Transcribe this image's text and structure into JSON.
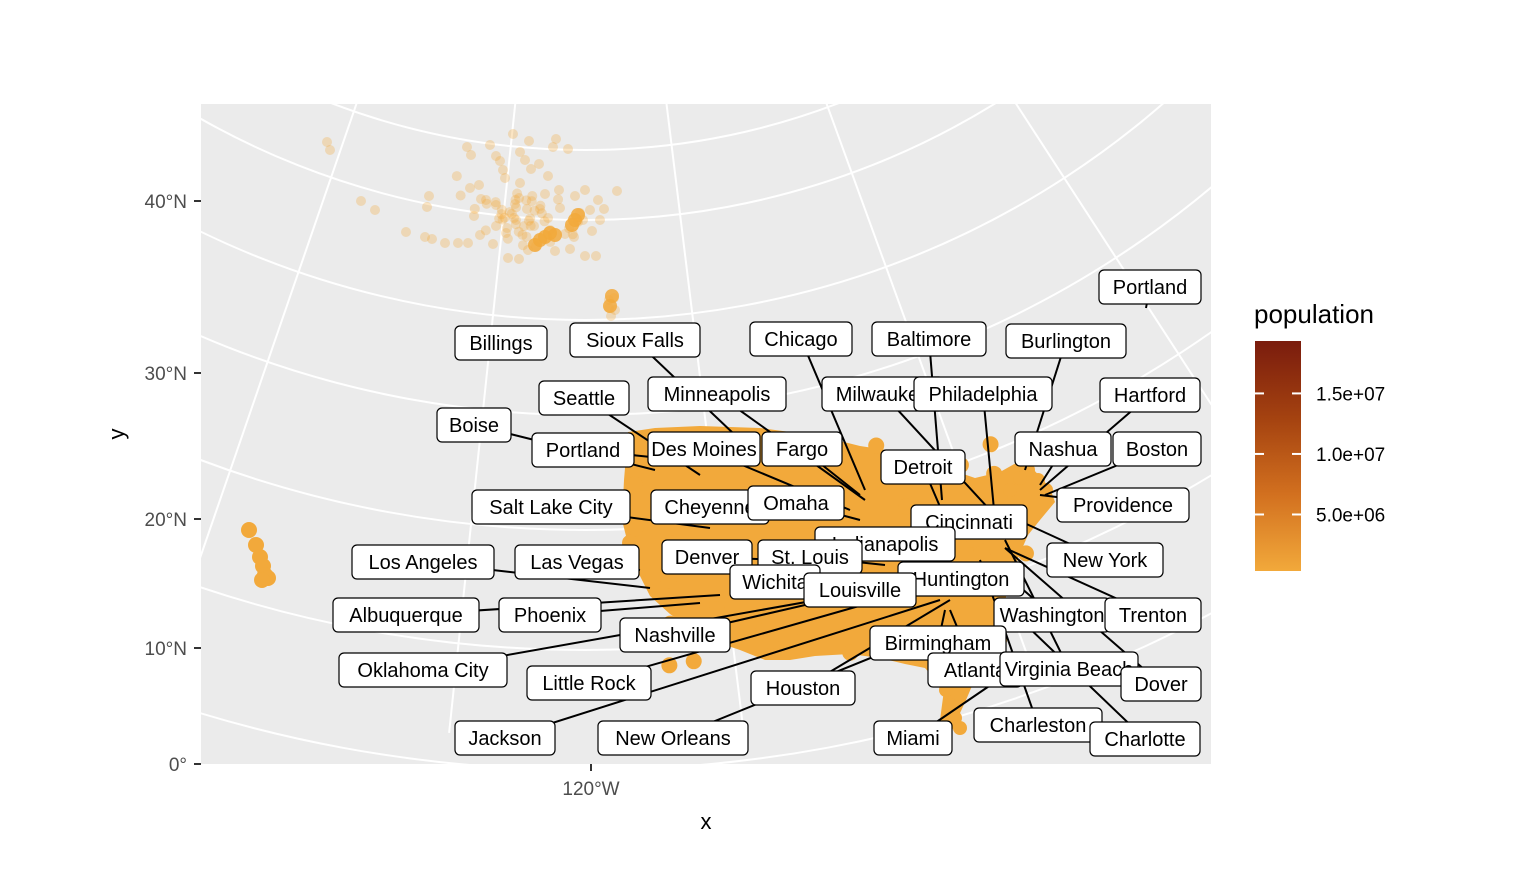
{
  "chart_data": {
    "type": "scatter",
    "xlabel": "x",
    "ylabel": "y",
    "x_ticks": [
      {
        "label": "120°W"
      }
    ],
    "y_ticks": [
      {
        "value": 0,
        "label": "0°"
      },
      {
        "value": 10,
        "label": "10°N"
      },
      {
        "value": 20,
        "label": "20°N"
      },
      {
        "value": 30,
        "label": "30°N"
      },
      {
        "value": 40,
        "label": "40°N"
      }
    ],
    "grid": true,
    "legend": {
      "title": "population",
      "position": "right",
      "type": "colorbar",
      "colors": [
        "#f2a93b",
        "#d2701f",
        "#a44210",
        "#7a1c0d"
      ],
      "ticks": [
        {
          "value": 5000000,
          "label": "5.0e+06"
        },
        {
          "value": 10000000,
          "label": "1.0e+07"
        },
        {
          "value": 15000000,
          "label": "1.5e+07"
        }
      ]
    },
    "point_color": "#f2a93b",
    "cities": [
      {
        "name": "Portland"
      },
      {
        "name": "Billings"
      },
      {
        "name": "Sioux Falls"
      },
      {
        "name": "Chicago"
      },
      {
        "name": "Baltimore"
      },
      {
        "name": "Burlington"
      },
      {
        "name": "Hartford"
      },
      {
        "name": "Seattle"
      },
      {
        "name": "Minneapolis"
      },
      {
        "name": "Milwaukee"
      },
      {
        "name": "Philadelphia"
      },
      {
        "name": "Boise"
      },
      {
        "name": "Portland"
      },
      {
        "name": "Des Moines"
      },
      {
        "name": "Fargo"
      },
      {
        "name": "Nashua"
      },
      {
        "name": "Boston"
      },
      {
        "name": "Detroit"
      },
      {
        "name": "Salt Lake City"
      },
      {
        "name": "Cheyenne"
      },
      {
        "name": "Omaha"
      },
      {
        "name": "Providence"
      },
      {
        "name": "Cincinnati"
      },
      {
        "name": "Indianapolis"
      },
      {
        "name": "Los Angeles"
      },
      {
        "name": "Las Vegas"
      },
      {
        "name": "Denver"
      },
      {
        "name": "St. Louis"
      },
      {
        "name": "New York"
      },
      {
        "name": "Wichita"
      },
      {
        "name": "Huntington"
      },
      {
        "name": "Louisville"
      },
      {
        "name": "Albuquerque"
      },
      {
        "name": "Phoenix"
      },
      {
        "name": "Washington"
      },
      {
        "name": "Trenton"
      },
      {
        "name": "Nashville"
      },
      {
        "name": "Birmingham"
      },
      {
        "name": "Oklahoma City"
      },
      {
        "name": "Atlanta"
      },
      {
        "name": "Virginia Beach"
      },
      {
        "name": "Little Rock"
      },
      {
        "name": "Houston"
      },
      {
        "name": "Dover"
      },
      {
        "name": "Charleston"
      },
      {
        "name": "Jackson"
      },
      {
        "name": "New Orleans"
      },
      {
        "name": "Miami"
      },
      {
        "name": "Charlotte"
      }
    ]
  }
}
